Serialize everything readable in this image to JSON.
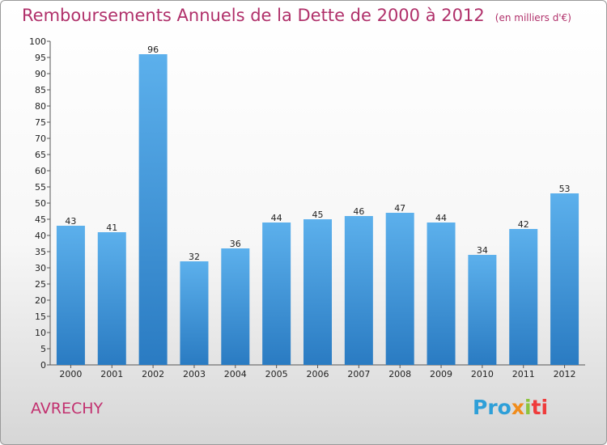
{
  "chart_data": {
    "type": "bar",
    "title": "Remboursements Annuels de la Dette de 2000 à 2012",
    "unit_note": "(en milliers d'€)",
    "categories": [
      "2000",
      "2001",
      "2002",
      "2003",
      "2004",
      "2005",
      "2006",
      "2007",
      "2008",
      "2009",
      "2010",
      "2011",
      "2012"
    ],
    "values": [
      43,
      41,
      96,
      32,
      36,
      44,
      45,
      46,
      47,
      44,
      34,
      42,
      53
    ],
    "ylim": [
      0,
      100
    ],
    "ytick_step": 5,
    "grid": false,
    "bar_color": "#3d95d8",
    "bar_color_light": "#5aaeea",
    "bar_color_dark": "#2a78c0"
  },
  "commune": "AVRECHY",
  "logo": {
    "parts": [
      "Pro",
      "x",
      "i",
      "ti"
    ],
    "colors": [
      "#2e9fd8",
      "#f08c1b",
      "#8cc43e",
      "#ef3b3b"
    ]
  },
  "colors": {
    "title": "#b0306a",
    "commune": "#c2306f"
  }
}
